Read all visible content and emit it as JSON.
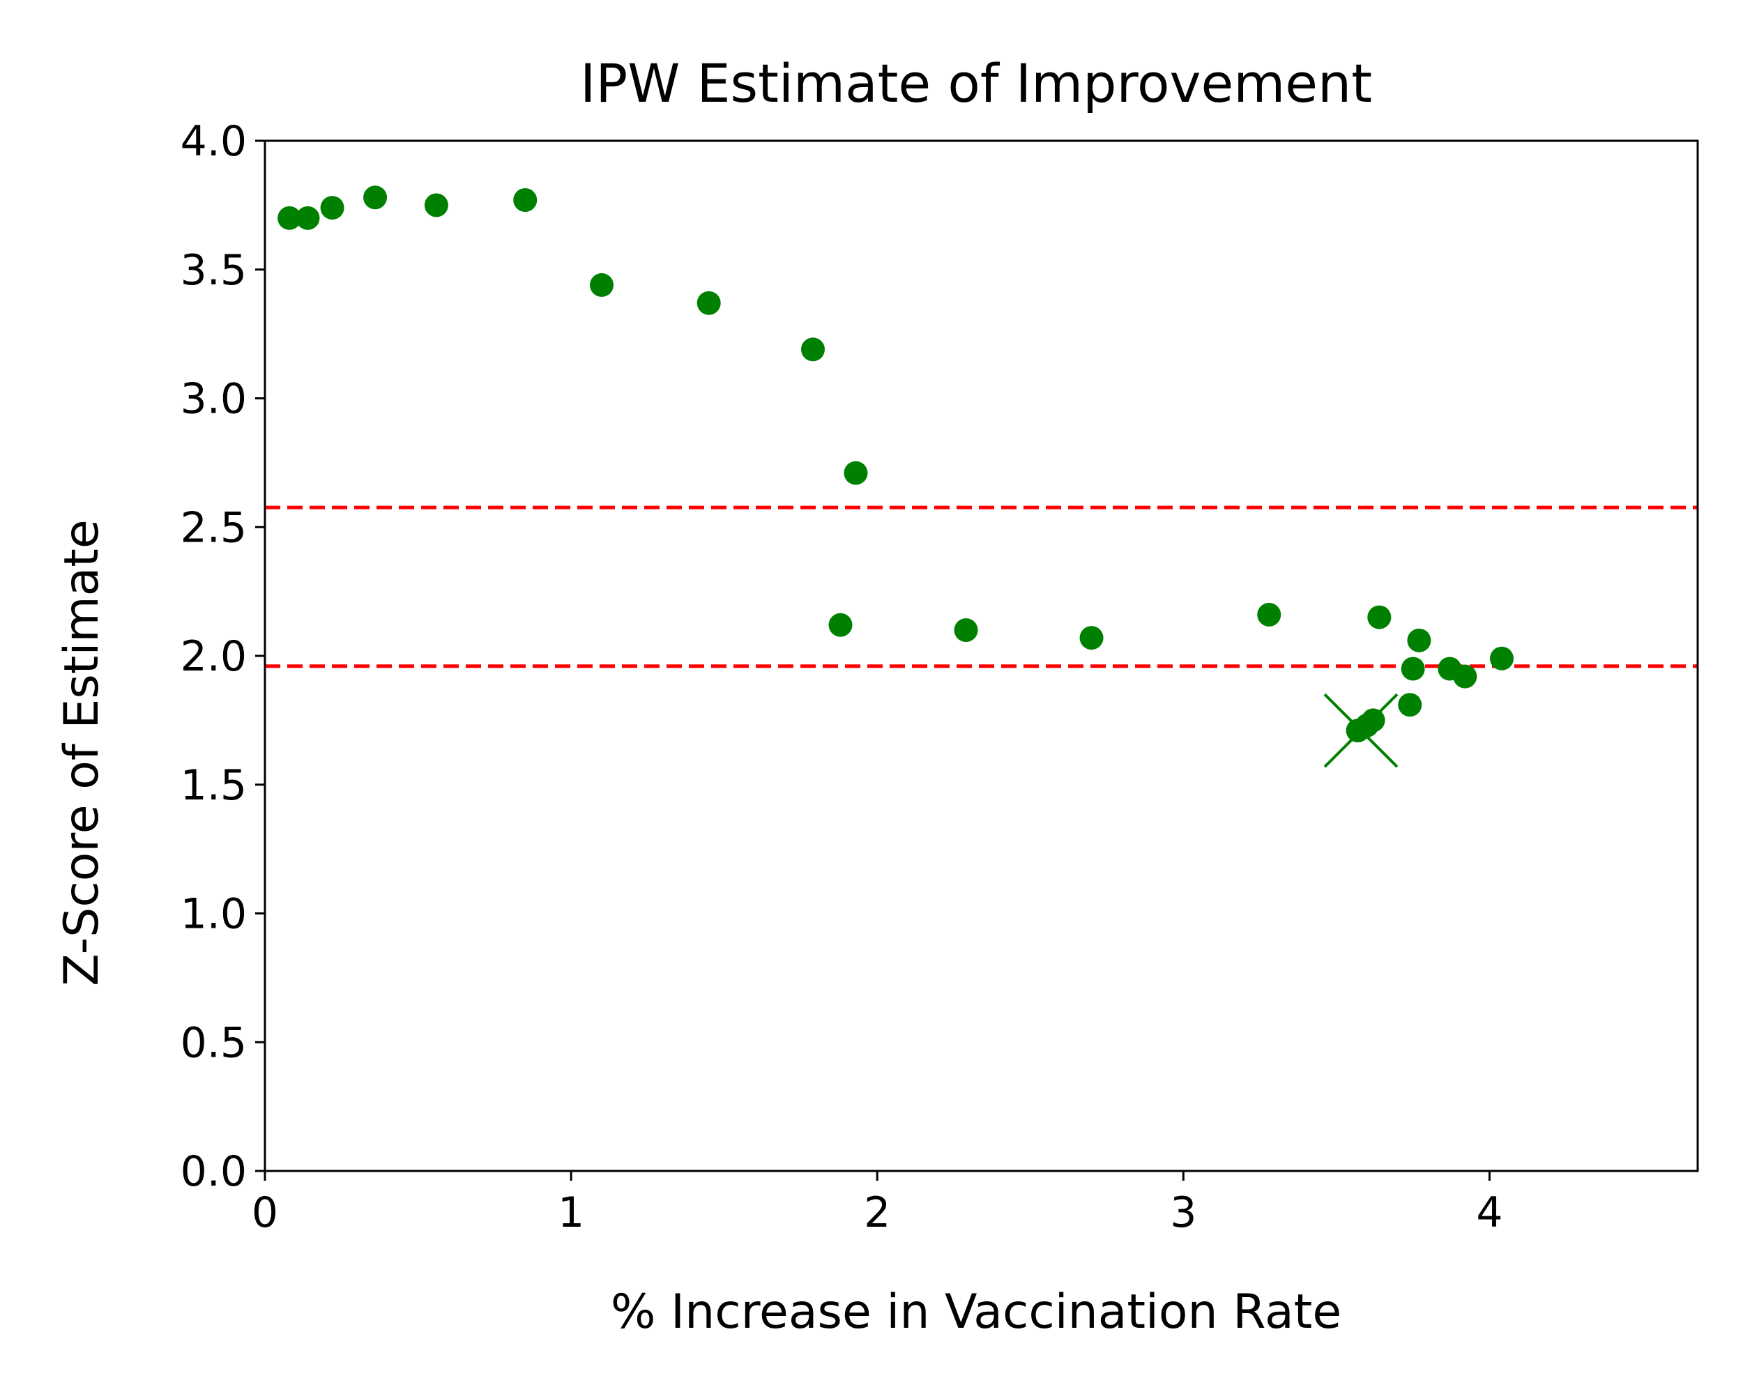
{
  "chart_data": {
    "type": "scatter",
    "title": "IPW Estimate of Improvement",
    "xlabel": "% Increase in Vaccination Rate",
    "ylabel": "Z-Score of Estimate",
    "xlim": [
      0,
      4.68
    ],
    "ylim": [
      0,
      4.0
    ],
    "xticks": [
      0,
      1,
      2,
      3,
      4
    ],
    "xtick_labels": [
      "0",
      "1",
      "2",
      "3",
      "4"
    ],
    "yticks": [
      0,
      0.5,
      1.0,
      1.5,
      2.0,
      2.5,
      3.0,
      3.5,
      4.0
    ],
    "ytick_labels": [
      "0.0",
      "0.5",
      "1.0",
      "1.5",
      "2.0",
      "2.5",
      "3.0",
      "3.5",
      "4.0"
    ],
    "grid": false,
    "marker_color": "#008000",
    "reference_line_color": "#ff0000",
    "series": [
      {
        "name": "estimates",
        "marker": "circle",
        "x": [
          0.08,
          0.14,
          0.22,
          0.36,
          0.56,
          0.85,
          1.1,
          1.45,
          1.79,
          1.93,
          1.88,
          2.29,
          2.7,
          3.28,
          3.64,
          3.77,
          3.75,
          3.74,
          3.87,
          3.92,
          4.04,
          3.57,
          3.6,
          3.62
        ],
        "y": [
          3.7,
          3.7,
          3.74,
          3.78,
          3.75,
          3.77,
          3.44,
          3.37,
          3.19,
          2.71,
          2.12,
          2.1,
          2.07,
          2.16,
          2.15,
          2.06,
          1.95,
          1.81,
          1.95,
          1.92,
          1.99,
          1.71,
          1.73,
          1.75
        ]
      },
      {
        "name": "selected",
        "marker": "x",
        "x": [
          3.58
        ],
        "y": [
          1.71
        ]
      }
    ],
    "reference_lines": [
      {
        "axis": "y",
        "value": 2.576,
        "style": "dashed"
      },
      {
        "axis": "y",
        "value": 1.96,
        "style": "dashed"
      }
    ]
  }
}
